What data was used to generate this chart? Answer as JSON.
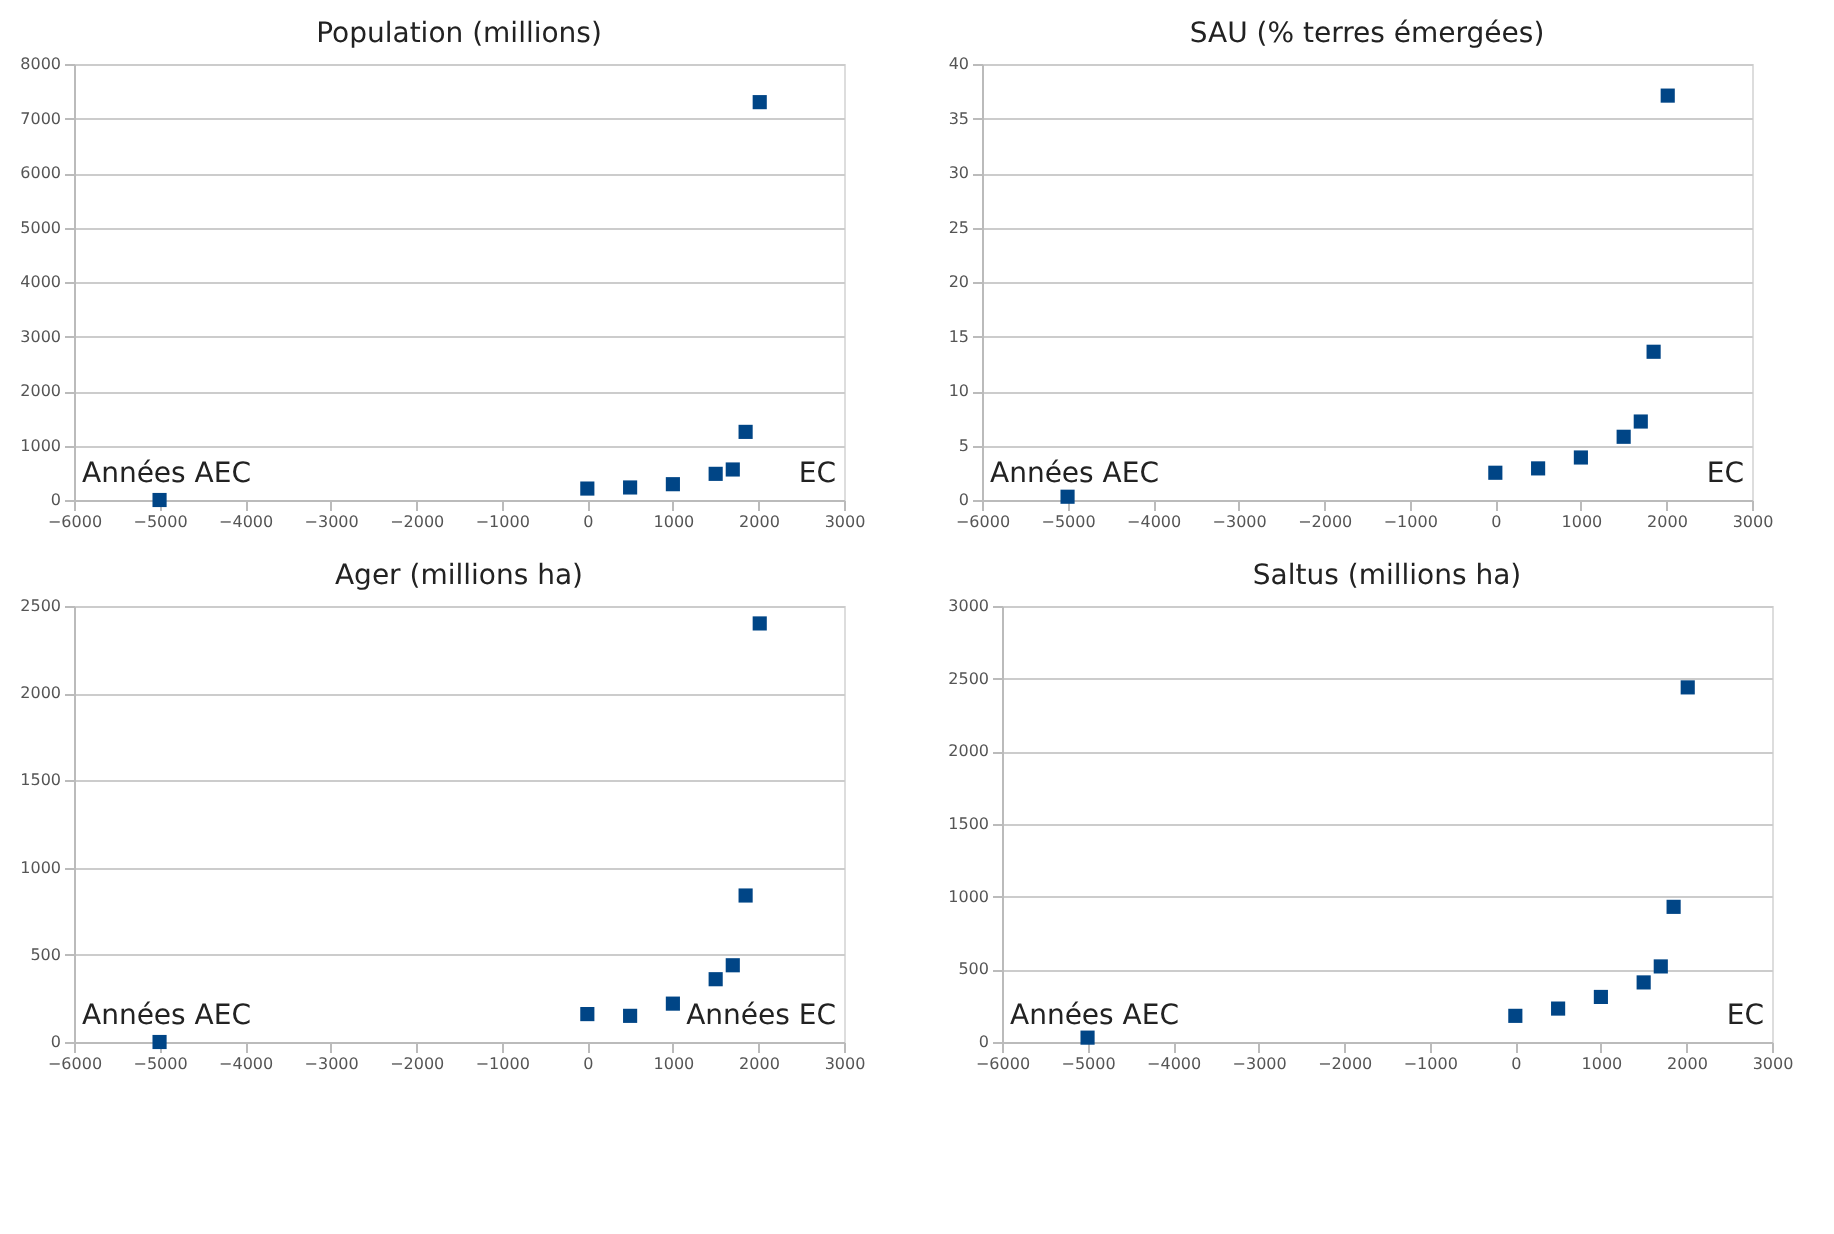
{
  "chart_data": [
    {
      "type": "scatter",
      "title": "Population (millions)",
      "x": [
        -5000,
        0,
        500,
        1000,
        1500,
        1700,
        1850,
        2015
      ],
      "series": [
        {
          "color": "#004586",
          "values": [
            0,
            210,
            230,
            290,
            480,
            560,
            1250,
            7300
          ]
        }
      ],
      "xlim": [
        -6000,
        3000
      ],
      "xticks": [
        -6000,
        -5000,
        -4000,
        -3000,
        -2000,
        -1000,
        0,
        1000,
        2000,
        3000
      ],
      "ylim": [
        0,
        8000
      ],
      "yticks": [
        0,
        1000,
        2000,
        3000,
        4000,
        5000,
        6000,
        7000,
        8000
      ],
      "grid": "y",
      "marker": "square",
      "annotations": [
        "Années AEC",
        "EC"
      ]
    },
    {
      "type": "scatter",
      "title": "SAU (% terres émergées)",
      "x": [
        -5000,
        0,
        500,
        1000,
        1500,
        1700,
        1850,
        2015
      ],
      "series": [
        {
          "color": "#004586",
          "values": [
            0.3,
            2.5,
            2.9,
            3.9,
            5.8,
            7.2,
            13.6,
            37.1
          ]
        }
      ],
      "xlim": [
        -6000,
        3000
      ],
      "xticks": [
        -6000,
        -5000,
        -4000,
        -3000,
        -2000,
        -1000,
        0,
        1000,
        2000,
        3000
      ],
      "ylim": [
        0,
        40
      ],
      "yticks": [
        0,
        5,
        10,
        15,
        20,
        25,
        30,
        35,
        40
      ],
      "grid": "y",
      "marker": "square",
      "annotations": [
        "Années AEC",
        "EC"
      ]
    },
    {
      "type": "scatter",
      "title": "Ager (millions ha)",
      "x": [
        -5000,
        0,
        500,
        1000,
        1500,
        1700,
        1850,
        2015
      ],
      "series": [
        {
          "color": "#004586",
          "values": [
            0,
            160,
            150,
            220,
            360,
            440,
            840,
            2400
          ]
        }
      ],
      "xlim": [
        -6000,
        3000
      ],
      "xticks": [
        -6000,
        -5000,
        -4000,
        -3000,
        -2000,
        -1000,
        0,
        1000,
        2000,
        3000
      ],
      "ylim": [
        0,
        2500
      ],
      "yticks": [
        0,
        500,
        1000,
        1500,
        2000,
        2500
      ],
      "grid": "y",
      "marker": "square",
      "annotations": [
        "Années AEC",
        "Années EC"
      ]
    },
    {
      "type": "scatter",
      "title": "Saltus (millions ha)",
      "x": [
        -5000,
        0,
        500,
        1000,
        1500,
        1700,
        1850,
        2015
      ],
      "series": [
        {
          "color": "#004586",
          "values": [
            30,
            180,
            230,
            310,
            410,
            520,
            930,
            2440
          ]
        }
      ],
      "xlim": [
        -6000,
        3000
      ],
      "xticks": [
        -6000,
        -5000,
        -4000,
        -3000,
        -2000,
        -1000,
        0,
        1000,
        2000,
        3000
      ],
      "ylim": [
        0,
        3000
      ],
      "yticks": [
        0,
        500,
        1000,
        1500,
        2000,
        2500,
        3000
      ],
      "grid": "y",
      "marker": "square",
      "annotations": [
        "Années AEC",
        "EC"
      ]
    }
  ]
}
